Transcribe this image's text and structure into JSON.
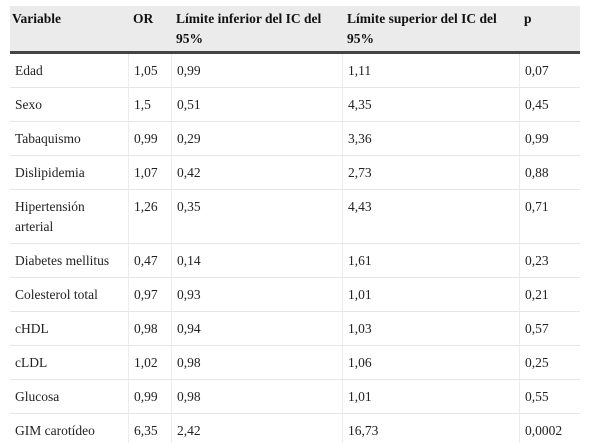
{
  "table": {
    "headers": [
      "Variable",
      "OR",
      "Límite inferior del IC del 95%",
      "Límite superior del IC del 95%",
      "p"
    ],
    "rows": [
      [
        "Edad",
        "1,05",
        "0,99",
        "1,11",
        "0,07"
      ],
      [
        "Sexo",
        "1,5",
        "0,51",
        "4,35",
        "0,45"
      ],
      [
        "Tabaquismo",
        "0,99",
        "0,29",
        "3,36",
        "0,99"
      ],
      [
        "Dislipidemia",
        "1,07",
        "0,42",
        "2,73",
        "0,88"
      ],
      [
        "Hipertensión arterial",
        "1,26",
        "0,35",
        "4,43",
        "0,71"
      ],
      [
        "Diabetes mellitus",
        "0,47",
        "0,14",
        "1,61",
        "0,23"
      ],
      [
        "Colesterol total",
        "0,97",
        "0,93",
        "1,01",
        "0,21"
      ],
      [
        "cHDL",
        "0,98",
        "0,94",
        "1,03",
        "0,57"
      ],
      [
        "cLDL",
        "1,02",
        "0,98",
        "1,06",
        "0,25"
      ],
      [
        "Glucosa",
        "0,99",
        "0,98",
        "1,01",
        "0,55"
      ],
      [
        "GIM carotídeo",
        "6,35",
        "2,42",
        "16,73",
        "0,0002"
      ]
    ]
  }
}
